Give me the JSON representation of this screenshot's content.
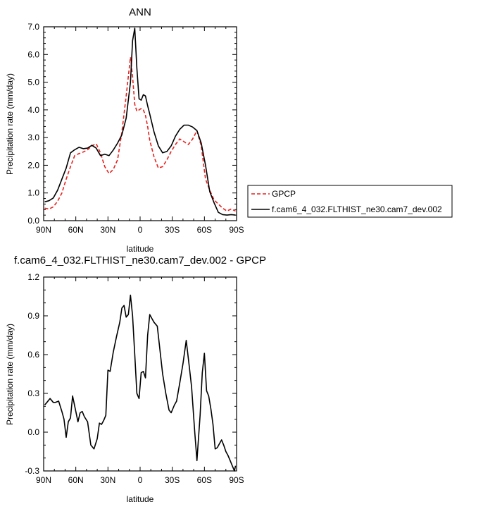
{
  "chart_data": [
    {
      "type": "line",
      "title": "ANN",
      "xlabel": "latitude",
      "ylabel": "Precipitation rate (mm/day)",
      "xlim": [
        90,
        -90
      ],
      "ylim": [
        0,
        7
      ],
      "xticks": [
        90,
        60,
        30,
        0,
        -30,
        -60,
        -90
      ],
      "xtick_labels": [
        "90N",
        "60N",
        "30N",
        "0",
        "30S",
        "60S",
        "90S"
      ],
      "yticks": [
        0,
        1,
        2,
        3,
        4,
        5,
        6,
        7
      ],
      "ytick_labels": [
        "0.0",
        "1.0",
        "2.0",
        "3.0",
        "4.0",
        "5.0",
        "6.0",
        "7.0"
      ],
      "legend_position": "right, outside plot",
      "series": [
        {
          "name": "GPCP",
          "color": "#e8201c",
          "dash": "dashed",
          "x": [
            89,
            85,
            81,
            77,
            73,
            69,
            65,
            61,
            57,
            53,
            49,
            45,
            41,
            37,
            33,
            29,
            25,
            21,
            17,
            13,
            9,
            7,
            5,
            3,
            1,
            -1,
            -3,
            -5,
            -7,
            -9,
            -13,
            -17,
            -21,
            -25,
            -29,
            -33,
            -37,
            -41,
            -45,
            -49,
            -53,
            -57,
            -61,
            -65,
            -69,
            -73,
            -77,
            -81,
            -85,
            -89
          ],
          "y": [
            0.45,
            0.42,
            0.5,
            0.7,
            1.0,
            1.5,
            1.95,
            2.35,
            2.42,
            2.48,
            2.56,
            2.7,
            2.78,
            2.45,
            1.95,
            1.7,
            1.85,
            2.2,
            3.2,
            4.5,
            5.9,
            5.2,
            4.2,
            3.95,
            4.0,
            4.05,
            4.0,
            3.8,
            3.4,
            2.9,
            2.3,
            1.9,
            1.95,
            2.2,
            2.5,
            2.75,
            2.95,
            2.85,
            2.75,
            2.95,
            3.25,
            2.7,
            1.5,
            1.1,
            0.75,
            0.6,
            0.45,
            0.35,
            0.42,
            0.35
          ]
        },
        {
          "name": "f.cam6_4_032.FLTHIST_ne30.cam7_dev.002",
          "color": "#000000",
          "dash": "solid",
          "x": [
            89,
            85,
            81,
            77,
            73,
            69,
            65,
            61,
            57,
            53,
            49,
            45,
            41,
            37,
            33,
            29,
            25,
            21,
            17,
            13,
            9,
            7,
            5,
            3,
            1,
            -1,
            -3,
            -5,
            -7,
            -9,
            -13,
            -17,
            -21,
            -25,
            -29,
            -33,
            -37,
            -41,
            -45,
            -49,
            -53,
            -57,
            -61,
            -65,
            -69,
            -73,
            -77,
            -81,
            -85,
            -89
          ],
          "y": [
            0.68,
            0.72,
            0.82,
            1.1,
            1.5,
            1.9,
            2.45,
            2.56,
            2.65,
            2.6,
            2.62,
            2.72,
            2.62,
            2.35,
            2.4,
            2.35,
            2.55,
            2.8,
            3.1,
            3.7,
            5.0,
            6.5,
            6.95,
            5.5,
            4.4,
            4.35,
            4.55,
            4.5,
            4.15,
            3.85,
            3.2,
            2.7,
            2.45,
            2.5,
            2.7,
            3.05,
            3.3,
            3.45,
            3.45,
            3.38,
            3.25,
            2.8,
            2.0,
            1.05,
            0.65,
            0.3,
            0.22,
            0.2,
            0.22,
            0.2
          ]
        }
      ]
    },
    {
      "type": "line",
      "title": "f.cam6_4_032.FLTHIST_ne30.cam7_dev.002 - GPCP",
      "xlabel": "latitude",
      "ylabel": "Precipitation rate (mm/day)",
      "xlim": [
        90,
        -90
      ],
      "ylim": [
        -0.3,
        1.2
      ],
      "xticks": [
        90,
        60,
        30,
        0,
        -30,
        -60,
        -90
      ],
      "xtick_labels": [
        "90N",
        "60N",
        "30N",
        "0",
        "30S",
        "60S",
        "90S"
      ],
      "yticks": [
        -0.3,
        0.0,
        0.3,
        0.6,
        0.9,
        1.2
      ],
      "ytick_labels": [
        "-0.3",
        "0.0",
        "0.3",
        "0.6",
        "0.9",
        "1.2"
      ],
      "series": [
        {
          "color": "#000000",
          "dash": "solid",
          "x": [
            89,
            87,
            84,
            81,
            79,
            76,
            73,
            71,
            69,
            67,
            65,
            63,
            60,
            58,
            56,
            54,
            52,
            49,
            46,
            43,
            40,
            38,
            36,
            34,
            32,
            30,
            28,
            25,
            22,
            19,
            17,
            15,
            13,
            11,
            9,
            7,
            5,
            3,
            1,
            -1,
            -3,
            -5,
            -7,
            -9,
            -11,
            -13,
            -16,
            -19,
            -21,
            -24,
            -27,
            -29,
            -32,
            -34,
            -37,
            -40,
            -43,
            -46,
            -48,
            -51,
            -53,
            -56,
            -58,
            -60,
            -62,
            -64,
            -66,
            -68,
            -70,
            -72,
            -74,
            -76,
            -78,
            -80,
            -82,
            -84,
            -86,
            -88,
            -89
          ],
          "y": [
            0.21,
            0.23,
            0.26,
            0.23,
            0.23,
            0.24,
            0.16,
            0.1,
            -0.04,
            0.08,
            0.11,
            0.28,
            0.16,
            0.08,
            0.15,
            0.16,
            0.12,
            0.08,
            -0.1,
            -0.13,
            -0.05,
            0.07,
            0.06,
            0.09,
            0.13,
            0.48,
            0.47,
            0.62,
            0.74,
            0.85,
            0.96,
            0.98,
            0.89,
            0.91,
            1.06,
            0.9,
            0.6,
            0.3,
            0.26,
            0.46,
            0.47,
            0.42,
            0.75,
            0.91,
            0.88,
            0.85,
            0.82,
            0.6,
            0.45,
            0.3,
            0.17,
            0.15,
            0.21,
            0.24,
            0.38,
            0.53,
            0.71,
            0.5,
            0.35,
            0.0,
            -0.22,
            0.13,
            0.46,
            0.61,
            0.32,
            0.28,
            0.18,
            0.06,
            -0.13,
            -0.12,
            -0.09,
            -0.06,
            -0.1,
            -0.15,
            -0.18,
            -0.22,
            -0.26,
            -0.3,
            -0.26
          ]
        }
      ]
    }
  ]
}
